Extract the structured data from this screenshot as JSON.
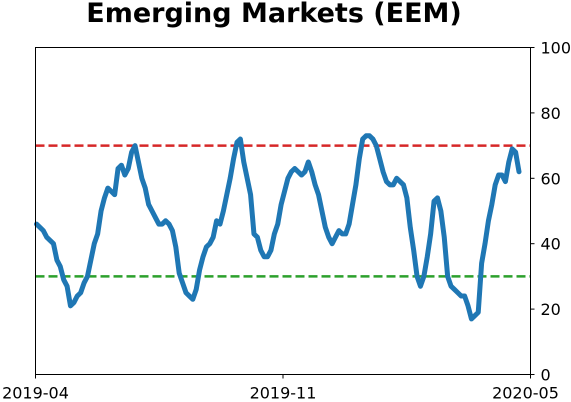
{
  "chart_data": {
    "type": "line",
    "title": "Emerging Markets (EEM)",
    "xlabel": "",
    "ylabel": "",
    "x_ticks": [
      "2019-04",
      "2019-11",
      "2020-05"
    ],
    "y_ticks": [
      "0",
      "20",
      "40",
      "60",
      "80",
      "100"
    ],
    "ylim": [
      0,
      100
    ],
    "y_axis_side": "right",
    "grid": false,
    "legend": "none",
    "reference_lines": [
      {
        "value": 70,
        "color": "#d62728",
        "style": "dashed"
      },
      {
        "value": 30,
        "color": "#2ca02c",
        "style": "dashed"
      }
    ],
    "series": [
      {
        "color": "#1f77b4",
        "x_range": [
          "2019-04-01",
          "2020-05-01"
        ],
        "values": [
          46,
          45,
          44,
          42,
          41,
          40,
          35,
          33,
          29,
          27,
          21,
          22,
          24,
          25,
          28,
          30,
          35,
          40,
          43,
          50,
          54,
          57,
          56,
          55,
          63,
          64,
          61,
          63,
          68,
          70,
          65,
          60,
          57,
          52,
          50,
          48,
          46,
          46,
          47,
          46,
          44,
          39,
          31,
          28,
          25,
          24,
          23,
          26,
          32,
          36,
          39,
          40,
          42,
          47,
          46,
          50,
          55,
          60,
          66,
          71,
          72,
          65,
          60,
          55,
          43,
          42,
          38,
          36,
          36,
          38,
          43,
          46,
          52,
          56,
          60,
          62,
          63,
          62,
          61,
          62,
          65,
          62,
          58,
          55,
          50,
          45,
          42,
          40,
          42,
          44,
          43,
          43,
          46,
          52,
          58,
          66,
          72,
          73,
          73,
          72,
          70,
          66,
          62,
          59,
          58,
          58,
          60,
          59,
          58,
          54,
          45,
          38,
          30,
          27,
          30,
          36,
          43,
          53,
          54,
          50,
          42,
          30,
          27,
          26,
          25,
          24,
          24,
          21,
          17,
          18,
          19,
          34,
          40,
          47,
          52,
          58,
          61,
          61,
          59,
          65,
          69,
          68,
          62
        ]
      }
    ]
  }
}
